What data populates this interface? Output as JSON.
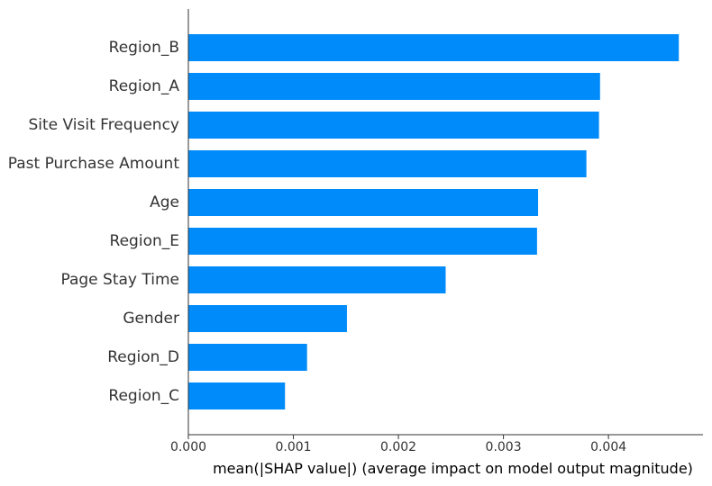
{
  "chart_data": {
    "type": "bar",
    "orientation": "horizontal",
    "categories": [
      "Region_B",
      "Region_A",
      "Site Visit Frequency",
      "Past Purchase Amount",
      "Age",
      "Region_E",
      "Page Stay Time",
      "Gender",
      "Region_D",
      "Region_C"
    ],
    "values": [
      0.00467,
      0.00392,
      0.00391,
      0.00379,
      0.00333,
      0.00332,
      0.00245,
      0.00151,
      0.00113,
      0.00092
    ],
    "xlabel": "mean(|SHAP value|) (average impact on model output magnitude)",
    "xlim": [
      0,
      0.0049
    ],
    "x_ticks": [
      "0.000",
      "0.001",
      "0.002",
      "0.003",
      "0.004"
    ],
    "x_tick_values": [
      0,
      0.001,
      0.002,
      0.003,
      0.004
    ],
    "bar_color": "#008bfb",
    "axis_color": "#333333",
    "grid": false
  }
}
